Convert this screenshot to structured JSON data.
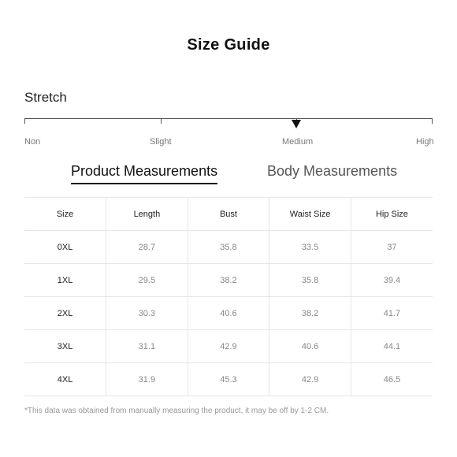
{
  "title": "Size Guide",
  "stretch": {
    "label": "Stretch",
    "levels": [
      "Non",
      "Slight",
      "Medium",
      "High"
    ],
    "selected": "Medium"
  },
  "tabs": [
    {
      "label": "Product Measurements",
      "active": true
    },
    {
      "label": "Body Measurements",
      "active": false
    }
  ],
  "table": {
    "headers": [
      "Size",
      "Length",
      "Bust",
      "Waist Size",
      "Hip Size"
    ],
    "rows": [
      [
        "0XL",
        "28.7",
        "35.8",
        "33.5",
        "37"
      ],
      [
        "1XL",
        "29.5",
        "38.2",
        "35.8",
        "39.4"
      ],
      [
        "2XL",
        "30.3",
        "40.6",
        "38.2",
        "41.7"
      ],
      [
        "3XL",
        "31.1",
        "42.9",
        "40.6",
        "44.1"
      ],
      [
        "4XL",
        "31.9",
        "45.3",
        "42.9",
        "46.5"
      ]
    ]
  },
  "footnote": "*This data was obtained from manually measuring the product, it may be off by 1-2 CM."
}
